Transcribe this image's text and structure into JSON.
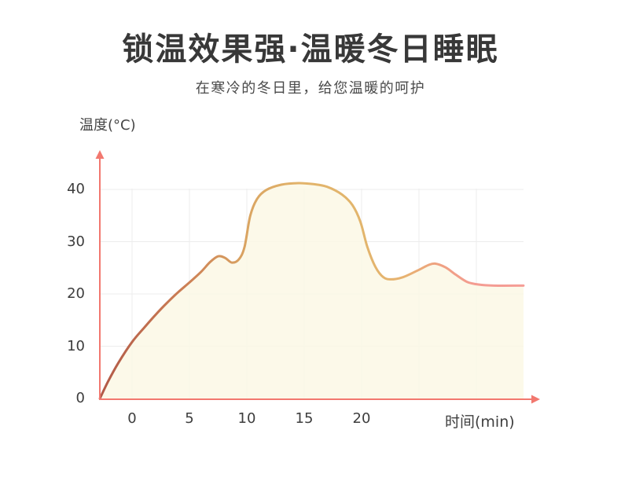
{
  "header": {
    "title": "锁温效果强·温暖冬日睡眠",
    "subtitle": "在寒冷的冬日里，给您温暖的呵护"
  },
  "chart_data": {
    "type": "area",
    "title": "",
    "xlabel": "时间(min)",
    "ylabel": "温度(°C)",
    "series_name": "温度",
    "x_ticks": [
      0,
      5,
      10,
      15,
      20
    ],
    "y_ticks": [
      0,
      10,
      20,
      30,
      40
    ],
    "x_gridlines": [
      0,
      5,
      10,
      15,
      20,
      25,
      30
    ],
    "y_gridlines": [
      10,
      20,
      30,
      40
    ],
    "xlim": [
      -2.8,
      35.3
    ],
    "ylim": [
      0,
      46
    ],
    "grid": true,
    "legend": false,
    "points": [
      [
        -2.8,
        0
      ],
      [
        -2.1,
        3.2
      ],
      [
        -1.2,
        6.8
      ],
      [
        0,
        10.8
      ],
      [
        1,
        13.4
      ],
      [
        2,
        15.9
      ],
      [
        3,
        18.2
      ],
      [
        4,
        20.3
      ],
      [
        5,
        22.2
      ],
      [
        6,
        24.2
      ],
      [
        6.8,
        26.1
      ],
      [
        7.5,
        27.2
      ],
      [
        8.1,
        26.9
      ],
      [
        8.7,
        26.0
      ],
      [
        9.3,
        26.6
      ],
      [
        9.8,
        29.0
      ],
      [
        10.3,
        35.0
      ],
      [
        10.9,
        38.2
      ],
      [
        11.7,
        39.9
      ],
      [
        13,
        40.9
      ],
      [
        14.5,
        41.2
      ],
      [
        15.8,
        41.0
      ],
      [
        17,
        40.5
      ],
      [
        18.3,
        39.0
      ],
      [
        19.2,
        37.0
      ],
      [
        19.9,
        33.8
      ],
      [
        20.5,
        29.0
      ],
      [
        21.2,
        25.2
      ],
      [
        21.9,
        23.2
      ],
      [
        22.6,
        22.8
      ],
      [
        23.6,
        23.2
      ],
      [
        24.8,
        24.4
      ],
      [
        25.8,
        25.5
      ],
      [
        26.4,
        25.8
      ],
      [
        27.3,
        25.1
      ],
      [
        28.2,
        23.7
      ],
      [
        29.2,
        22.3
      ],
      [
        30.2,
        21.8
      ],
      [
        31.5,
        21.6
      ],
      [
        34.1,
        21.6
      ]
    ],
    "colors": {
      "axis": "#f2786f",
      "grid": "#ececec",
      "area_fill": "#fbf8e5",
      "line_gradient": [
        {
          "offset": 0.0,
          "color": "#b25947"
        },
        {
          "offset": 0.21,
          "color": "#cd8156"
        },
        {
          "offset": 0.35,
          "color": "#daa562"
        },
        {
          "offset": 0.48,
          "color": "#e2b46b"
        },
        {
          "offset": 0.62,
          "color": "#e2b56c"
        },
        {
          "offset": 0.72,
          "color": "#e7b270"
        },
        {
          "offset": 0.8,
          "color": "#efa182"
        },
        {
          "offset": 0.89,
          "color": "#f49c92"
        },
        {
          "offset": 1.0,
          "color": "#f59d96"
        }
      ]
    }
  }
}
